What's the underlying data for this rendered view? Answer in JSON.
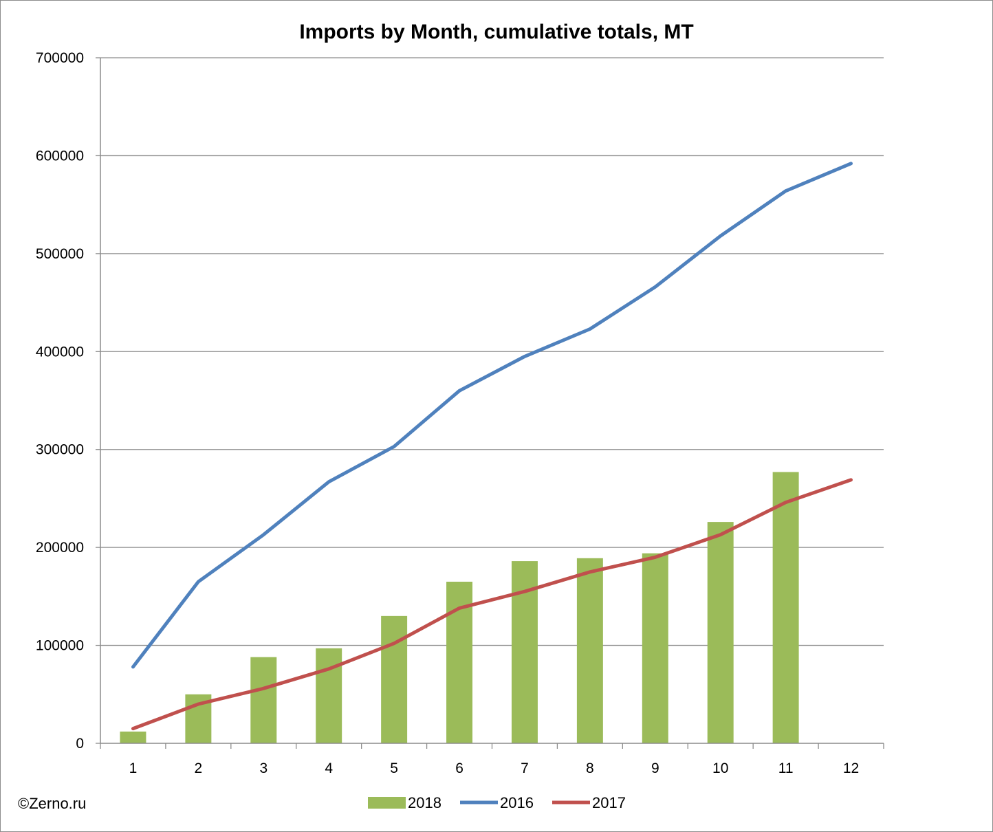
{
  "chart_data": {
    "type": "bar",
    "title": "Imports by Month, cumulative totals, MT",
    "xlabel": "",
    "ylabel": "",
    "categories": [
      "1",
      "2",
      "3",
      "4",
      "5",
      "6",
      "7",
      "8",
      "9",
      "10",
      "11",
      "12"
    ],
    "ylim": [
      0,
      700000
    ],
    "yticks": [
      "0",
      "100000",
      "200000",
      "300000",
      "400000",
      "500000",
      "600000",
      "700000"
    ],
    "grid": true,
    "legend_position": "bottom",
    "series": [
      {
        "name": "2018",
        "type": "bar",
        "color": "#9bbb59",
        "values": [
          12000,
          50000,
          88000,
          97000,
          130000,
          165000,
          186000,
          189000,
          194000,
          226000,
          277000,
          null
        ]
      },
      {
        "name": "2016",
        "type": "line",
        "color": "#4f81bd",
        "values": [
          78000,
          165000,
          213000,
          267000,
          303000,
          360000,
          395000,
          423000,
          466000,
          518000,
          564000,
          592000
        ]
      },
      {
        "name": "2017",
        "type": "line",
        "color": "#c0504d",
        "values": [
          15000,
          40000,
          56000,
          76000,
          102000,
          138000,
          155000,
          175000,
          190000,
          213000,
          246000,
          269000
        ]
      }
    ]
  },
  "credit": "©Zerno.ru"
}
